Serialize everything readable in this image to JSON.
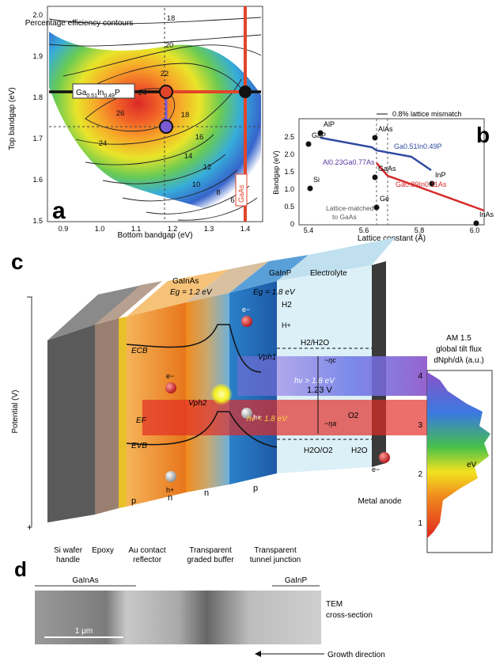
{
  "panel_a": {
    "letter": "a",
    "xlabel": "Bottom bandgap (eV)",
    "ylabel": "Top bandgap (eV)",
    "xticks": [
      "0.9",
      "1.0",
      "1.1",
      "1.2",
      "1.3",
      "1.4"
    ],
    "yticks": [
      "2.0",
      "1.9",
      "1.8",
      "1.7",
      "1.6",
      "1.5"
    ],
    "annotation": "Percentage efficiency contours",
    "contour_labels": [
      "18",
      "20",
      "22",
      "24",
      "26",
      "24",
      "18",
      "16",
      "14",
      "12",
      "10",
      "8",
      "6"
    ],
    "material_label_main": "Ga",
    "material_label_sub1": "0.51",
    "material_label_mid": "In",
    "material_label_sub2": "0.49",
    "material_label_end": "P",
    "gaas_label": "GaAs"
  },
  "panel_b": {
    "letter": "b",
    "xlabel": "Lattice constant (Å)",
    "ylabel": "Bandgap (eV)",
    "xticks": [
      "5.4",
      "5.6",
      "5.8",
      "6.0"
    ],
    "yticks": [
      "0",
      "0.5",
      "1.0",
      "1.5",
      "2.0",
      "2.5"
    ],
    "mismatch": "0.8% lattice mismatch",
    "points": [
      "AlP",
      "GaP",
      "AlAs",
      "Si",
      "GaAs",
      "Ge",
      "InP",
      "InAs"
    ],
    "lattice_note_1": "Lattice-matched",
    "lattice_note_2": "to GaAs",
    "gainp_label": "Ga0.51In0.49P",
    "algaas_label": "Al0.23Ga0.77As",
    "gainas_label": "Ga0.89In0.11As"
  },
  "panel_c": {
    "letter": "c",
    "potential_label": "Potential (V)",
    "minus": "–",
    "plus": "+",
    "gainas": "GaInAs",
    "gainas_eg": "Eg = 1.2 eV",
    "gainp": "GaInP",
    "gainp_eg": "Eg = 1.8 eV",
    "electrolyte": "Electrolyte",
    "h2": "H2",
    "hplus": "H+",
    "h2_h2o": "H2/H2O",
    "eta_c": "~ηc",
    "v123": "1.23 V",
    "eta_a": "~ηa",
    "h2o_o2": "H2O/O2",
    "o2": "O2",
    "h2o": "H2O",
    "ecb": "ECB",
    "evb": "EVB",
    "ef": "EF",
    "vph2": "Vph2",
    "vph1": "Vph1",
    "hv_gt": "hν > 1.8 eV",
    "hv_lt": "hν < 1.8 eV",
    "electron": "e−",
    "hole": "h+",
    "p1": "p",
    "n1": "n",
    "n2": "n",
    "p2": "p",
    "am15_1": "AM 1.5",
    "am15_2": "global tilt flux",
    "am15_3": "dNph/dλ (a.u.)",
    "ev_axis": "eV",
    "ev_ticks": [
      "4",
      "3",
      "2",
      "1"
    ],
    "bottom_labels": {
      "si": "Si wafer",
      "si2": "handle",
      "epoxy": "Epoxy",
      "au": "Au contact",
      "au2": "reflector",
      "tgb": "Transparent",
      "tgb2": "graded buffer",
      "ttj": "Transparent",
      "ttj2": "tunnel junction",
      "anode": "Metal anode"
    }
  },
  "panel_d": {
    "letter": "d",
    "gainas": "GaInAs",
    "gainp": "GaInP",
    "tem_1": "TEM",
    "tem_2": "cross-section",
    "scale": "1 μm",
    "growth": "Growth direction"
  }
}
